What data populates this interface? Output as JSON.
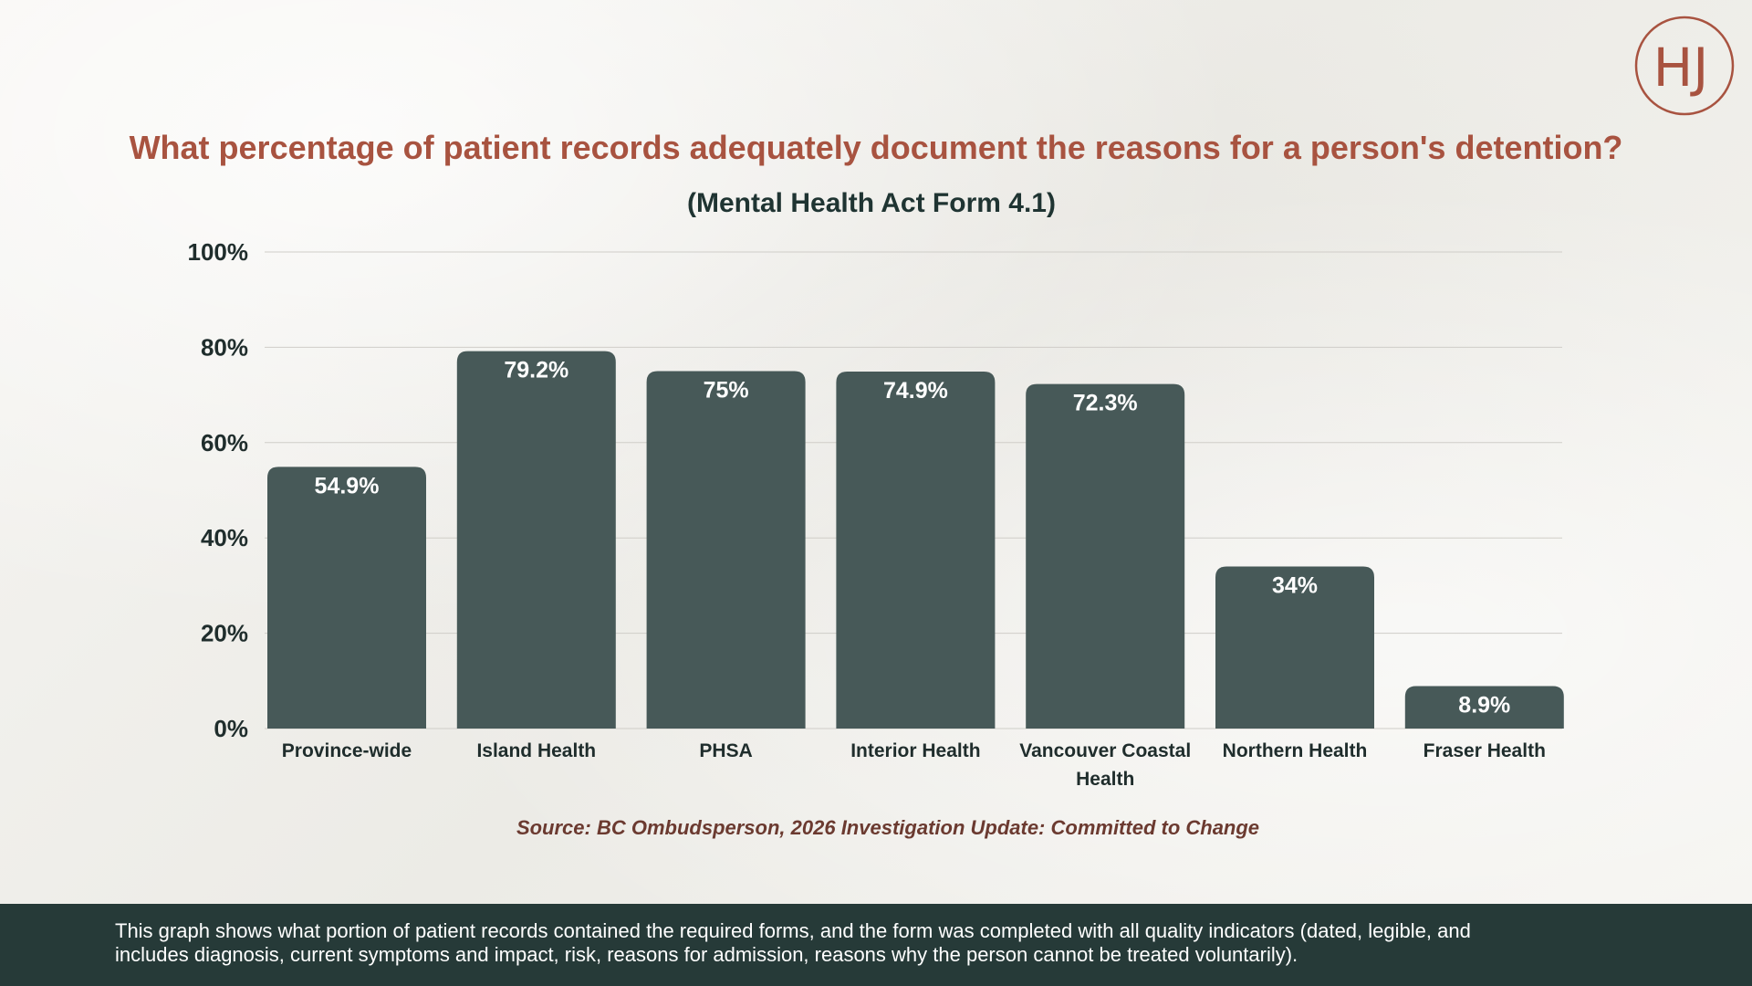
{
  "footer": {
    "note_line1": "This graph shows what portion of patient records contained the required forms, and the form was completed with all quality indicators (dated, legible, and",
    "note_line2": "includes diagnosis, current symptoms and impact, risk, reasons for admission, reasons why the person cannot be treated voluntarily)."
  },
  "logo": {
    "letters": "HJ",
    "color": "#a85340"
  },
  "colors": {
    "title": "#a85340",
    "subtitle": "#1f3432",
    "bar": "#475958",
    "bar_label": "#ffffff",
    "axis_text": "#1f2d2c",
    "source": "#6b3a30",
    "footer_bg": "#263a38"
  },
  "chart_data": {
    "type": "bar",
    "title": "What percentage of patient records adequately document the reasons for a person's detention?",
    "subtitle": "(Mental Health Act Form 4.1)",
    "categories": [
      "Province-wide",
      "Island Health",
      "PHSA",
      "Interior Health",
      "Vancouver Coastal Health",
      "Northern Health",
      "Fraser Health"
    ],
    "category_lines": [
      [
        "Province-wide"
      ],
      [
        "Island Health"
      ],
      [
        "PHSA"
      ],
      [
        "Interior Health"
      ],
      [
        "Vancouver Coastal",
        "Health"
      ],
      [
        "Northern Health"
      ],
      [
        "Fraser Health"
      ]
    ],
    "values": [
      54.9,
      79.2,
      75,
      74.9,
      72.3,
      34,
      8.9
    ],
    "value_labels": [
      "54.9%",
      "79.2%",
      "75%",
      "74.9%",
      "72.3%",
      "34%",
      "8.9%"
    ],
    "ylim": [
      0,
      100
    ],
    "yticks": [
      0,
      20,
      40,
      60,
      80,
      100
    ],
    "ytick_labels": [
      "0%",
      "20%",
      "40%",
      "60%",
      "80%",
      "100%"
    ],
    "grid": true,
    "legend": "none",
    "source": "Source: BC Ombudsperson, 2026 Investigation Update: Committed to Change"
  }
}
